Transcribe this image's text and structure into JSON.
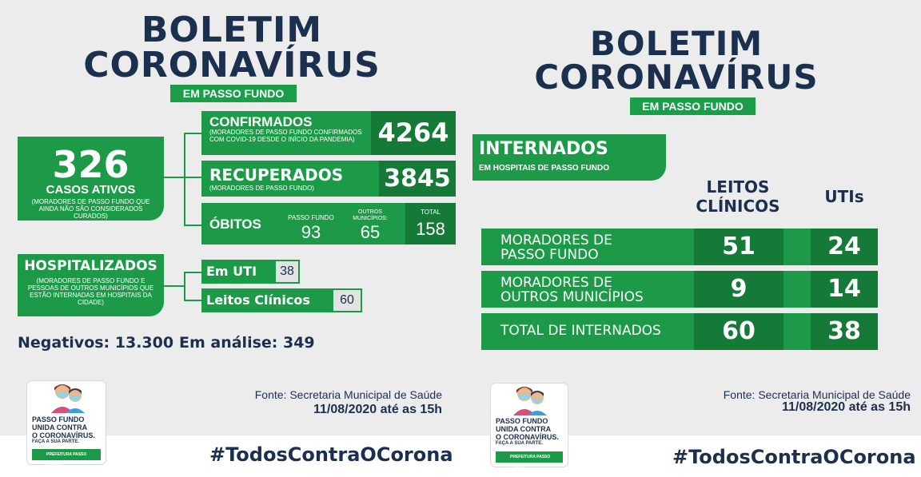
{
  "left": {
    "title_line1": "BOLETIM",
    "title_line2": "CORONAVÍRUS",
    "subtitle": "EM PASSO FUNDO",
    "active": {
      "value": "326",
      "label": "CASOS ATIVOS",
      "note": "(MORADORES DE PASSO FUNDO QUE AINDA NÃO SÃO CONSIDERADOS CURADOS)"
    },
    "confirmed": {
      "label": "CONFIRMADOS",
      "note": "(MORADORES DE PASSO FUNDO CONFIRMADOS COM COVID-19 DESDE O INÍCIO DA PANDEMIA)",
      "value": "4264"
    },
    "recovered": {
      "label": "RECUPERADOS",
      "note": "(MORADORES DE PASSO FUNDO)",
      "value": "3845"
    },
    "deaths": {
      "label": "ÓBITOS",
      "pf_label": "PASSO FUNDO",
      "pf_value": "93",
      "other_label": "OUTROS MUNICÍPIOS:",
      "other_value": "65",
      "total_label": "TOTAL",
      "total_value": "158"
    },
    "hospital": {
      "label": "HOSPITALIZADOS",
      "note": "(MORADORES DE PASSO FUNDO E PESSOAS DE OUTROS MUNICÍPIOS QUE ESTÃO INTERNADAS EM HOSPITAIS DA CIDADE)",
      "uti_label": "Em UTI",
      "uti_value": "38",
      "clinical_label": "Leitos Clínicos",
      "clinical_value": "60"
    },
    "negatives": "Negativos: 13.300",
    "analysis": "Em análise: 349",
    "source": "Fonte: Secretaria Municipal de Saúde",
    "date": "11/08/2020 até as 15h",
    "hashtag": "#TodosContraOCorona"
  },
  "right": {
    "title_line1": "BOLETIM",
    "title_line2": "CORONAVÍRUS",
    "subtitle": "EM PASSO FUNDO",
    "interned": {
      "label": "INTERNADOS",
      "note": "EM HOSPITAIS DE PASSO FUNDO"
    },
    "col_beds_line1": "LEITOS",
    "col_beds_line2": "CLÍNICOS",
    "col_utis": "UTIs",
    "rows": [
      {
        "line1": "MORADORES DE",
        "line2": "PASSO FUNDO",
        "beds": "51",
        "utis": "24"
      },
      {
        "line1": "MORADORES DE",
        "line2": "OUTROS MUNICÍPIOS",
        "beds": "9",
        "utis": "14"
      },
      {
        "line1": "TOTAL DE INTERNADOS",
        "line2": "",
        "beds": "60",
        "utis": "38"
      }
    ],
    "source": "Fonte: Secretaria Municipal de Saúde",
    "date": "11/08/2020 até as 15h",
    "hashtag": "#TodosContraOCorona"
  },
  "logo": {
    "line1": "PASSO FUNDO",
    "line2": "UNIDA CONTRA",
    "line3": "O CORONAVÍRUS.",
    "line4": "FAÇA A SUA PARTE.",
    "badge": "PREFEITURA PASSO FUNDO"
  },
  "colors": {
    "navy": "#1b2f4e",
    "green": "#1d9a48",
    "dark_green": "#157a38",
    "background": "#ececec"
  }
}
